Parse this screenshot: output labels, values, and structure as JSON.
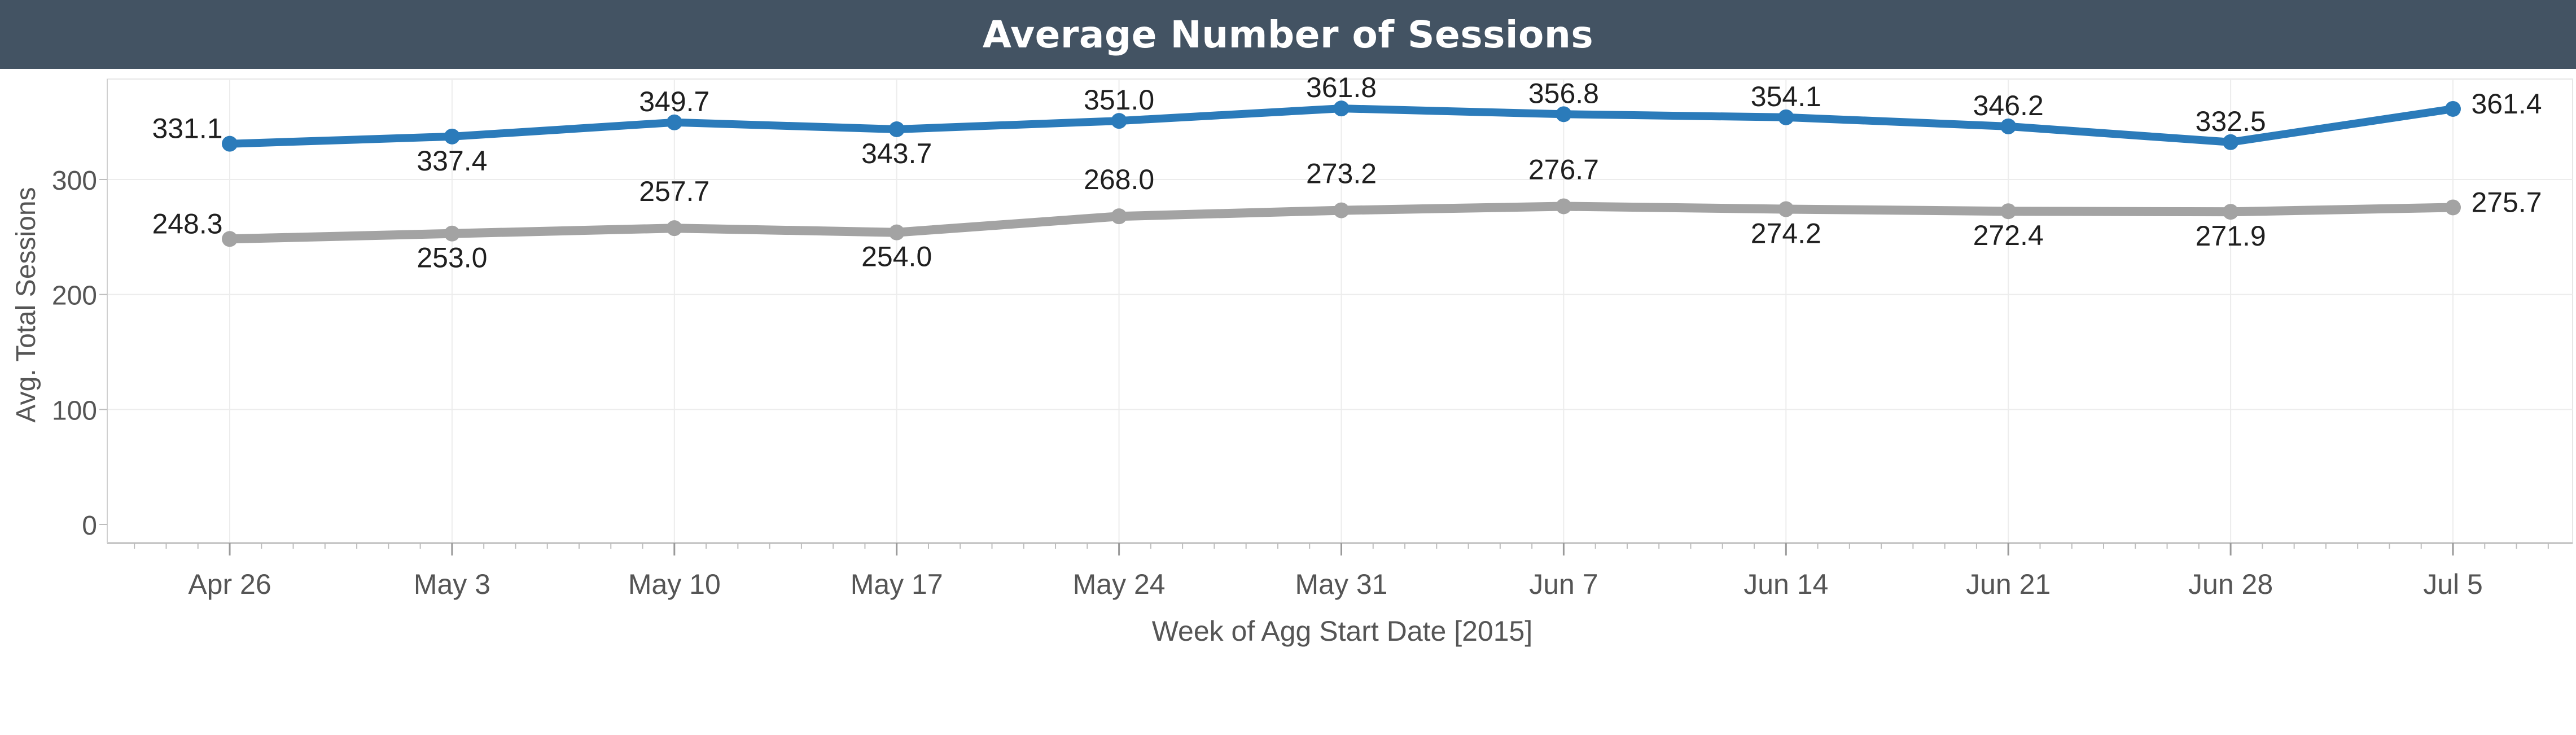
{
  "chart_data": {
    "type": "line",
    "title": "Average Number of Sessions",
    "xlabel": "Week of Agg Start Date [2015]",
    "ylabel": "Avg. Total Sessions",
    "ylim": [
      0,
      400
    ],
    "yticks": [
      0,
      100,
      200,
      300
    ],
    "grid": true,
    "categories": [
      "Apr 26",
      "May 3",
      "May 10",
      "May 17",
      "May 24",
      "May 31",
      "Jun 7",
      "Jun 14",
      "Jun 21",
      "Jun 28",
      "Jul 5"
    ],
    "series": [
      {
        "color": "#2b7bba",
        "values": [
          331.1,
          337.4,
          349.7,
          343.7,
          351.0,
          361.8,
          356.8,
          354.1,
          346.2,
          332.5,
          361.4
        ],
        "labels": [
          "331.1",
          "337.4",
          "349.7",
          "343.7",
          "351.0",
          "361.8",
          "356.8",
          "354.1",
          "346.2",
          "332.5",
          "361.4"
        ]
      },
      {
        "color": "#a3a3a3",
        "values": [
          248.3,
          253.0,
          257.7,
          254.0,
          268.0,
          273.2,
          276.7,
          274.2,
          272.4,
          271.9,
          275.7
        ],
        "labels": [
          "248.3",
          "253.0",
          "257.7",
          "254.0",
          "268.0",
          "273.2",
          "276.7",
          "274.2",
          "272.4",
          "271.9",
          "275.7"
        ]
      }
    ]
  }
}
